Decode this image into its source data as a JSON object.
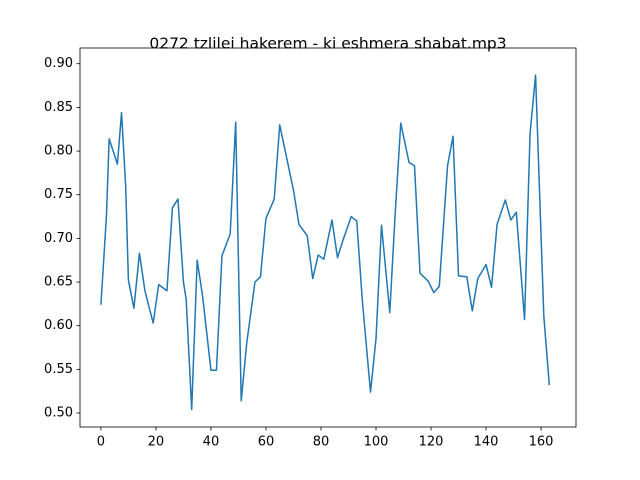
{
  "chart_data": {
    "type": "line",
    "title": "0272 tzlilei hakerem - ki eshmera shabat.mp3",
    "x": [
      0,
      2,
      3,
      6,
      7.5,
      9,
      10,
      12,
      14,
      16,
      19,
      21,
      24,
      26,
      28,
      30,
      31,
      33,
      35,
      37,
      40,
      42,
      44,
      47,
      49,
      51,
      53,
      56,
      58,
      60,
      63,
      65,
      67,
      70,
      72,
      75,
      77,
      79,
      81,
      84,
      86,
      88,
      91,
      93,
      95,
      98,
      100,
      102,
      105,
      107,
      109,
      112,
      114,
      116,
      119,
      121,
      123,
      126,
      128,
      130,
      133,
      135,
      137,
      140,
      142,
      144,
      147,
      149,
      151,
      154,
      156,
      158,
      161,
      163
    ],
    "series": [
      {
        "color": "#1f77b4",
        "values": [
          0.624,
          0.725,
          0.814,
          0.785,
          0.844,
          0.76,
          0.652,
          0.62,
          0.683,
          0.64,
          0.603,
          0.647,
          0.64,
          0.735,
          0.745,
          0.65,
          0.63,
          0.504,
          0.675,
          0.633,
          0.549,
          0.549,
          0.68,
          0.705,
          0.833,
          0.514,
          0.58,
          0.65,
          0.656,
          0.723,
          0.745,
          0.83,
          0.8,
          0.755,
          0.716,
          0.703,
          0.654,
          0.681,
          0.676,
          0.721,
          0.678,
          0.698,
          0.725,
          0.72,
          0.63,
          0.524,
          0.585,
          0.715,
          0.615,
          0.73,
          0.832,
          0.787,
          0.783,
          0.66,
          0.651,
          0.638,
          0.645,
          0.783,
          0.817,
          0.657,
          0.656,
          0.617,
          0.654,
          0.67,
          0.644,
          0.716,
          0.744,
          0.721,
          0.73,
          0.607,
          0.82,
          0.887,
          0.611,
          0.532
        ]
      }
    ],
    "xlim": [
      -7.6,
      172.7
    ],
    "ylim": [
      0.484,
      0.918
    ],
    "xticks": [
      0,
      20,
      40,
      60,
      80,
      100,
      120,
      140,
      160
    ],
    "yticks": [
      {
        "value": 0.5,
        "label": "0.50"
      },
      {
        "value": 0.55,
        "label": "0.55"
      },
      {
        "value": 0.6,
        "label": "0.60"
      },
      {
        "value": 0.65,
        "label": "0.65"
      },
      {
        "value": 0.7,
        "label": "0.70"
      },
      {
        "value": 0.75,
        "label": "0.75"
      },
      {
        "value": 0.8,
        "label": "0.80"
      },
      {
        "value": 0.85,
        "label": "0.85"
      },
      {
        "value": 0.9,
        "label": "0.90"
      }
    ]
  }
}
